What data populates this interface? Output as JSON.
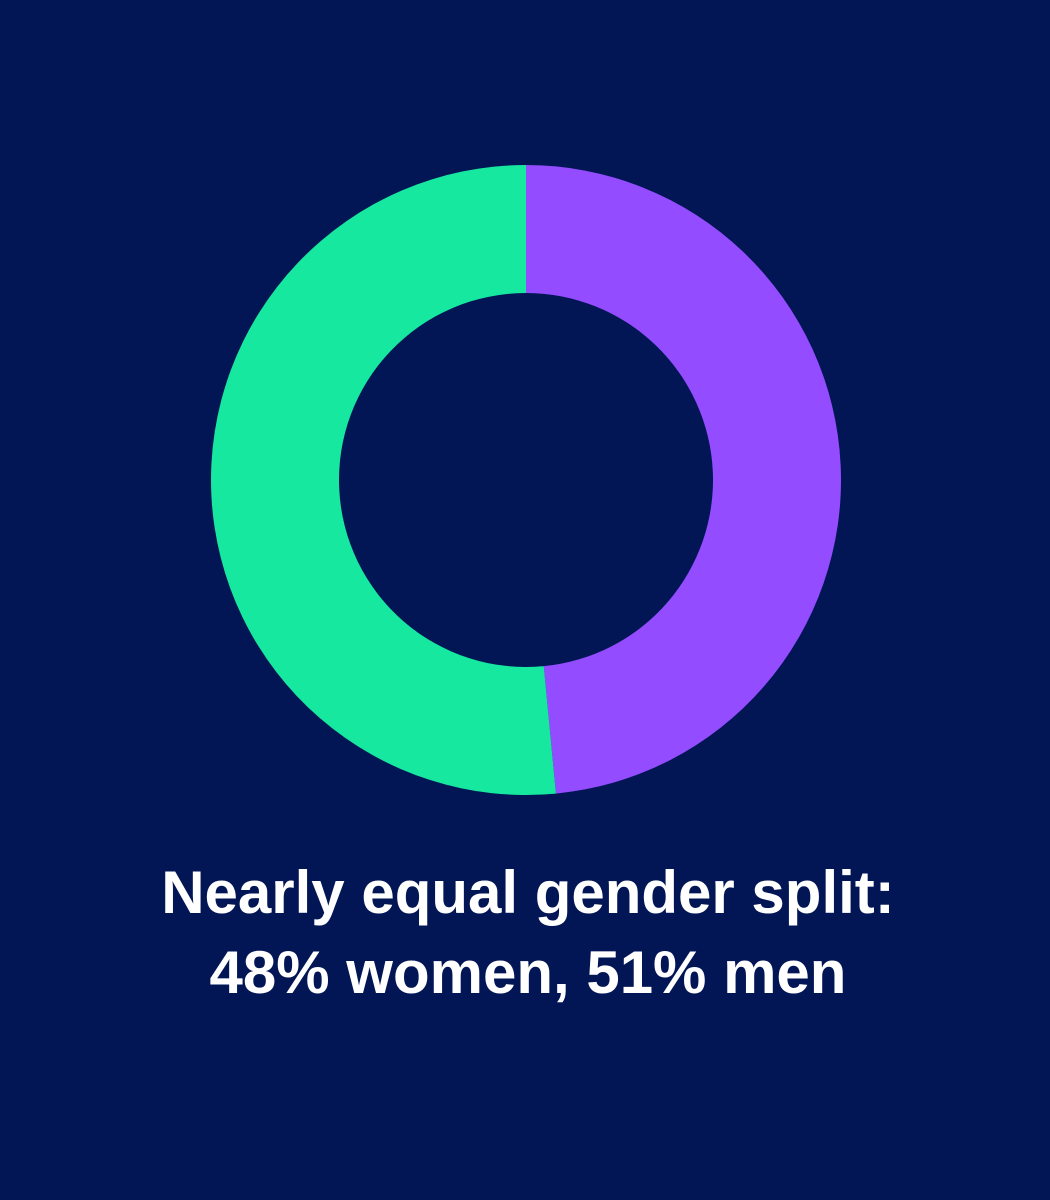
{
  "chart_data": {
    "type": "donut",
    "title": [
      "Nearly equal gender split:",
      "48% women, 51% men"
    ],
    "values": [
      48,
      51
    ],
    "colors": [
      "#934cff",
      "#17e8a0"
    ]
  }
}
